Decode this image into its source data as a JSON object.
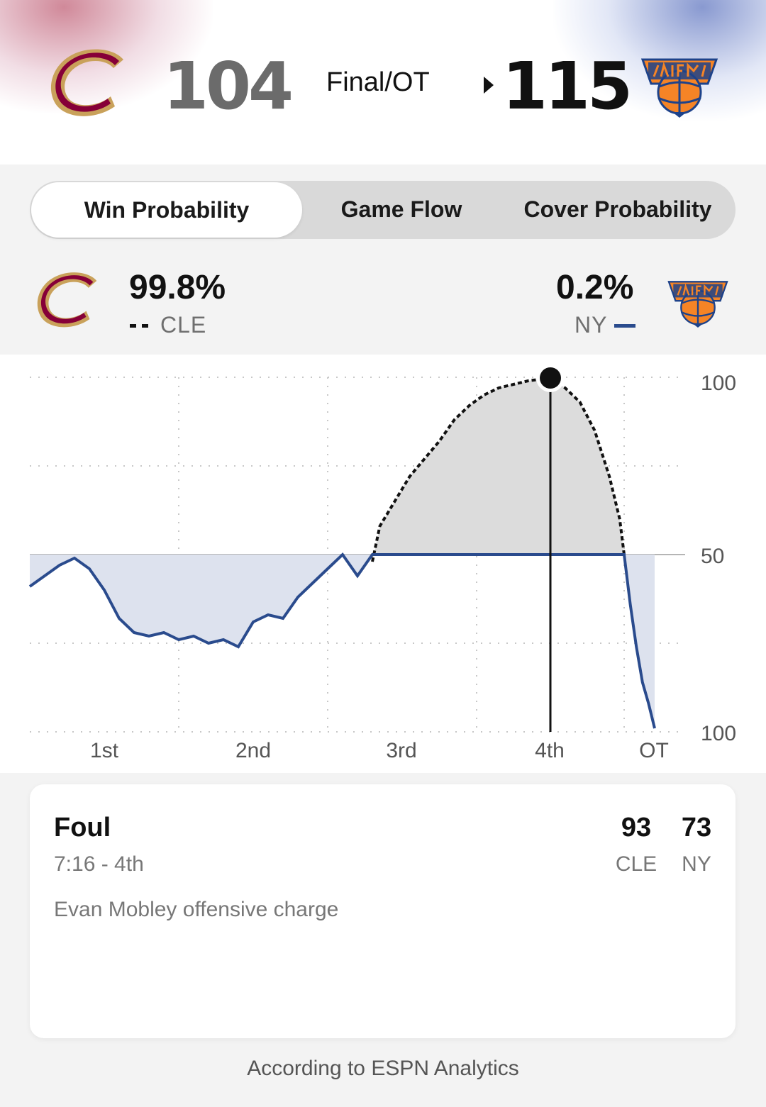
{
  "header": {
    "away": {
      "abbr": "CLE",
      "score": "104",
      "logo_icon": "cavaliers-logo",
      "color": "#860038"
    },
    "home": {
      "abbr": "NY",
      "score": "115",
      "logo_icon": "knicks-logo",
      "color": "#006BB6"
    },
    "status": "Final/OT",
    "winner_marker_icon": "triangle-right-icon"
  },
  "tabs": [
    {
      "label": "Win Probability",
      "active": true
    },
    {
      "label": "Game Flow",
      "active": false
    },
    {
      "label": "Cover Probability",
      "active": false
    }
  ],
  "probability": {
    "away": {
      "value": "99.8%",
      "label": "CLE",
      "line_style": "dashed"
    },
    "home": {
      "value": "0.2%",
      "label": "NY",
      "line_style": "solid"
    }
  },
  "chart_data": {
    "type": "line",
    "x_labels": [
      "1st",
      "2nd",
      "3rd",
      "4th",
      "OT"
    ],
    "y_labels": [
      "100",
      "50",
      "100"
    ],
    "y_axis": "win probability (%), top = CLE 100, bottom = NY 100",
    "series": [
      {
        "name": "CLE",
        "style": "dashed",
        "color": "#111111",
        "points": [
          [
            2.3,
            48
          ],
          [
            2.35,
            58
          ],
          [
            2.45,
            65
          ],
          [
            2.55,
            72
          ],
          [
            2.65,
            77
          ],
          [
            2.75,
            82
          ],
          [
            2.85,
            88
          ],
          [
            2.95,
            92
          ],
          [
            3.05,
            95
          ],
          [
            3.15,
            97
          ],
          [
            3.25,
            98
          ],
          [
            3.35,
            99
          ],
          [
            3.5,
            99.8
          ],
          [
            3.6,
            97
          ],
          [
            3.7,
            93
          ],
          [
            3.8,
            85
          ],
          [
            3.9,
            72
          ],
          [
            3.97,
            60
          ],
          [
            4.0,
            50
          ]
        ]
      },
      {
        "name": "NY",
        "style": "solid",
        "color": "#2a4b8d",
        "points": [
          [
            0,
            41
          ],
          [
            0.1,
            44
          ],
          [
            0.2,
            47
          ],
          [
            0.3,
            49
          ],
          [
            0.4,
            46
          ],
          [
            0.5,
            40
          ],
          [
            0.6,
            32
          ],
          [
            0.7,
            28
          ],
          [
            0.8,
            27
          ],
          [
            0.9,
            28
          ],
          [
            1.0,
            26
          ],
          [
            1.1,
            27
          ],
          [
            1.2,
            25
          ],
          [
            1.3,
            26
          ],
          [
            1.4,
            24
          ],
          [
            1.5,
            31
          ],
          [
            1.6,
            33
          ],
          [
            1.7,
            32
          ],
          [
            1.8,
            38
          ],
          [
            1.9,
            42
          ],
          [
            2.0,
            46
          ],
          [
            2.1,
            50
          ],
          [
            2.2,
            44
          ],
          [
            2.3,
            50
          ],
          [
            4.0,
            50
          ],
          [
            4.1,
            36
          ],
          [
            4.2,
            24
          ],
          [
            4.3,
            14
          ],
          [
            4.4,
            8
          ],
          [
            4.5,
            1
          ]
        ]
      }
    ],
    "selected_marker": {
      "x": 3.5,
      "y": 99.8
    }
  },
  "play": {
    "type": "Foul",
    "time": "7:16 - 4th",
    "description": "Evan Mobley offensive charge",
    "away_score": "93",
    "home_score": "73",
    "away_label": "CLE",
    "home_label": "NY"
  },
  "footer": "According to ESPN Analytics"
}
